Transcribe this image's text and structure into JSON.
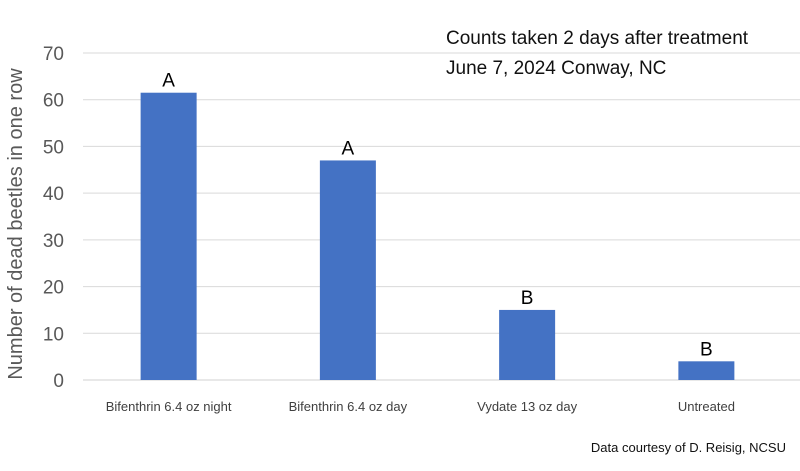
{
  "chart_data": {
    "type": "bar",
    "title": "",
    "annotations": [
      "Counts taken 2 days after treatment",
      "June 7, 2024 Conway, NC"
    ],
    "ylabel": "Number of dead beetles in one row",
    "xlabel": "",
    "categories": [
      "Bifenthrin 6.4 oz night",
      "Bifenthrin 6.4 oz day",
      "Vydate 13 oz day",
      "Untreated"
    ],
    "values": [
      61.5,
      47,
      15,
      4
    ],
    "letters": [
      "A",
      "A",
      "B",
      "B"
    ],
    "ylim": [
      0,
      70
    ],
    "yticks": [
      "0",
      "10",
      "20",
      "30",
      "40",
      "50",
      "60",
      "70"
    ],
    "grid": true,
    "bar_color": "#4472c4"
  },
  "credit": "Data courtesy of D. Reisig, NCSU"
}
